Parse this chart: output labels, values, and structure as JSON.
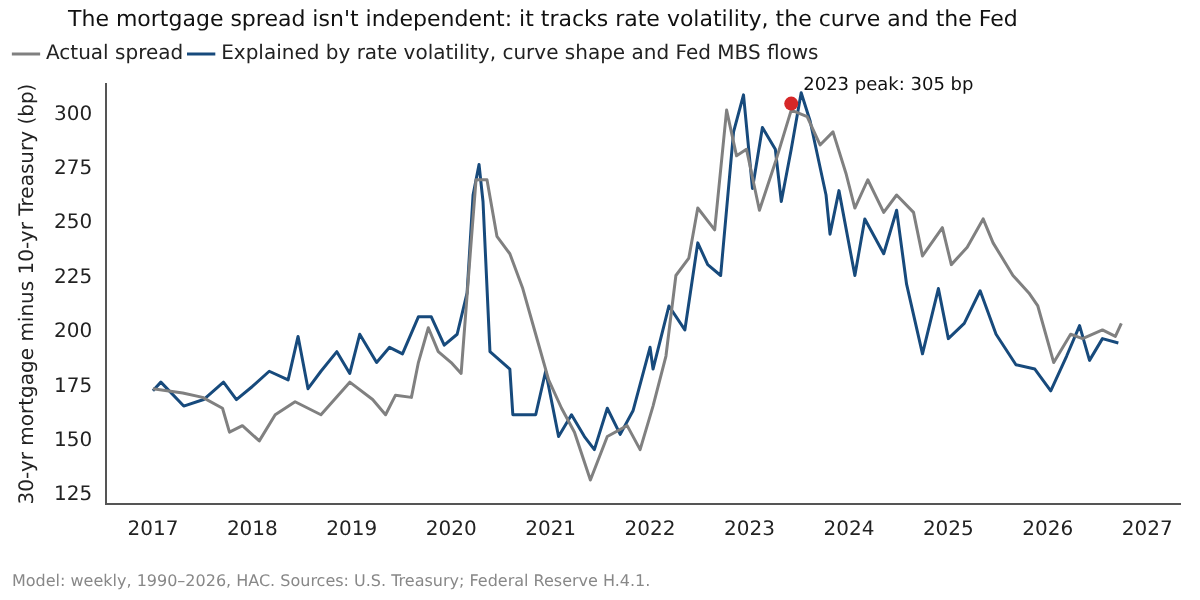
{
  "chart_data": {
    "type": "line",
    "title": "The mortgage spread isn't independent: it tracks rate volatility, the curve and the Fed",
    "ylabel": "30-yr mortgage minus 10-yr Treasury (bp)",
    "xlim": [
      2016.53,
      2027.33
    ],
    "xticks": [
      2017,
      2018,
      2019,
      2020,
      2021,
      2022,
      2023,
      2024,
      2025,
      2026,
      2027
    ],
    "ylim": [
      121,
      314
    ],
    "yticks": [
      125,
      150,
      175,
      200,
      225,
      250,
      275,
      300
    ],
    "grid": false,
    "legend": "top left",
    "marker": "none",
    "line_style": "solid",
    "series": [
      {
        "name": "Actual spread",
        "color": "#808080",
        "x": [
          2017.0,
          2017.3,
          2017.5,
          2017.7,
          2017.77,
          2017.9,
          2018.07,
          2018.23,
          2018.43,
          2018.69,
          2018.98,
          2019.21,
          2019.34,
          2019.44,
          2019.6,
          2019.67,
          2019.77,
          2019.87,
          2020.0,
          2020.1,
          2020.2,
          2020.25,
          2020.36,
          2020.46,
          2020.59,
          2020.72,
          2020.85,
          2020.98,
          2021.11,
          2021.24,
          2021.4,
          2021.57,
          2021.77,
          2021.9,
          2022.03,
          2022.16,
          2022.26,
          2022.39,
          2022.48,
          2022.65,
          2022.77,
          2022.87,
          2022.97,
          2023.1,
          2023.26,
          2023.42,
          2023.58,
          2023.71,
          2023.84,
          2023.97,
          2024.06,
          2024.19,
          2024.35,
          2024.48,
          2024.65,
          2024.74,
          2024.94,
          2025.03,
          2025.19,
          2025.35,
          2025.45,
          2025.65,
          2025.81,
          2025.9,
          2026.06,
          2026.23,
          2026.35,
          2026.55,
          2026.68,
          2026.74
        ],
        "values": [
          174,
          172,
          170,
          165,
          154,
          157,
          150,
          162,
          168,
          162,
          177,
          169,
          162,
          171,
          170,
          186,
          202,
          191,
          186,
          181,
          241,
          270,
          270,
          244,
          236,
          220,
          199,
          178,
          165,
          154,
          132,
          152,
          157,
          146,
          166,
          189,
          226,
          234,
          257,
          247,
          302,
          281,
          284,
          256,
          278,
          302,
          299,
          286,
          292,
          273,
          257,
          270,
          255,
          263,
          255,
          235,
          248,
          231,
          239,
          252,
          241,
          226,
          218,
          212,
          186,
          199,
          197,
          201,
          198,
          204
        ]
      },
      {
        "name": "Explained by rate volatility, curve shape and Fed MBS flows",
        "color": "#174a7c",
        "x": [
          2017.0,
          2017.08,
          2017.31,
          2017.51,
          2017.71,
          2017.84,
          2018.0,
          2018.17,
          2018.36,
          2018.46,
          2018.56,
          2018.69,
          2018.85,
          2018.98,
          2019.08,
          2019.25,
          2019.38,
          2019.51,
          2019.67,
          2019.8,
          2019.93,
          2020.06,
          2020.16,
          2020.22,
          2020.28,
          2020.32,
          2020.39,
          2020.59,
          2020.62,
          2020.85,
          2020.95,
          2021.08,
          2021.21,
          2021.34,
          2021.44,
          2021.57,
          2021.7,
          2021.83,
          2022.0,
          2022.03,
          2022.19,
          2022.35,
          2022.48,
          2022.58,
          2022.71,
          2022.84,
          2022.94,
          2023.03,
          2023.13,
          2023.26,
          2023.32,
          2023.42,
          2023.52,
          2023.61,
          2023.77,
          2023.81,
          2023.9,
          2024.06,
          2024.16,
          2024.35,
          2024.48,
          2024.58,
          2024.74,
          2024.9,
          2025.0,
          2025.16,
          2025.32,
          2025.48,
          2025.68,
          2025.87,
          2026.03,
          2026.19,
          2026.32,
          2026.42,
          2026.55,
          2026.71
        ],
        "values": [
          173,
          177,
          166,
          169,
          177,
          169,
          175,
          182,
          178,
          198,
          174,
          182,
          191,
          181,
          199,
          186,
          193,
          190,
          207,
          207,
          194,
          199,
          218,
          263,
          277,
          260,
          191,
          183,
          162,
          162,
          182,
          152,
          162,
          152,
          146,
          165,
          153,
          164,
          193,
          183,
          212,
          201,
          241,
          231,
          226,
          292,
          309,
          266,
          294,
          284,
          260,
          284,
          310,
          297,
          263,
          245,
          265,
          226,
          252,
          236,
          256,
          222,
          190,
          220,
          197,
          204,
          219,
          199,
          185,
          183,
          173,
          189,
          203,
          187,
          197,
          195
        ]
      }
    ],
    "annotations": [
      {
        "text": "2023 peak: 305 bp",
        "x": 2023.42,
        "y": 305
      },
      "Model: weekly, 1990–2026, HAC. Sources: U.S. Treasury; Federal Reserve H.4.1."
    ]
  }
}
